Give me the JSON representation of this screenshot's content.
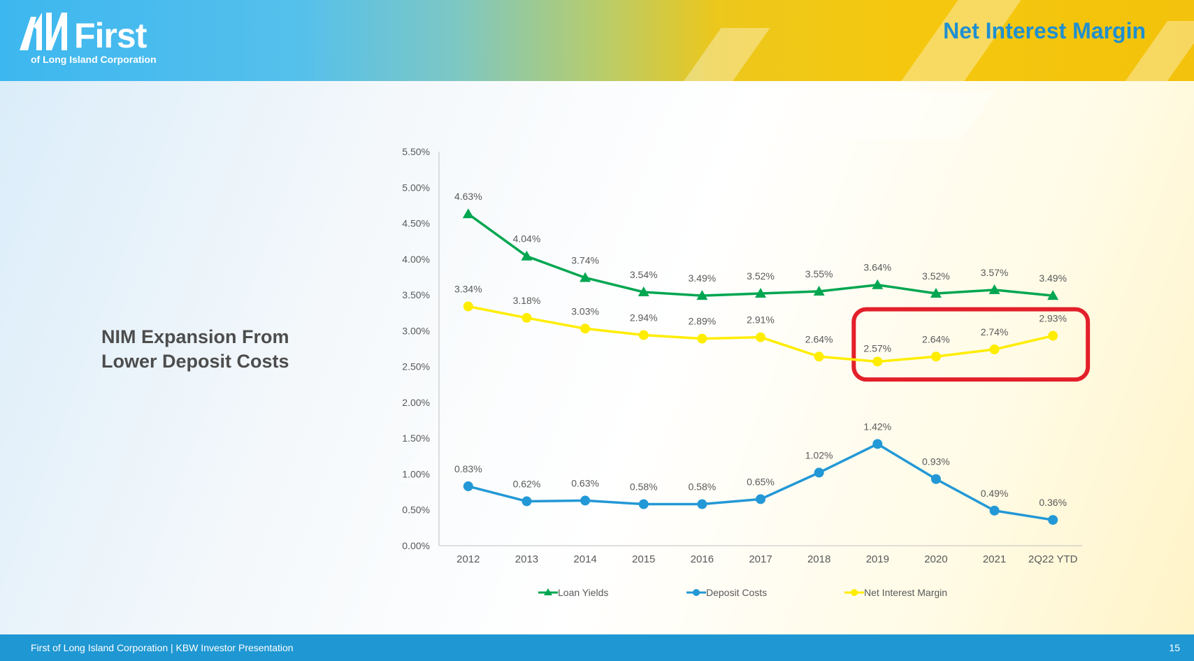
{
  "header": {
    "logo_text": "First",
    "logo_subtitle": "of Long Island Corporation",
    "title": "Net Interest Margin"
  },
  "side_heading": "NIM Expansion From Lower Deposit Costs",
  "footer": {
    "text": "First of Long Island Corporation | KBW Investor Presentation",
    "page_number": "15"
  },
  "colors": {
    "loan_yields": "#00a651",
    "deposit_costs": "#2398d6",
    "net_interest_margin": "#ffed00",
    "highlight_box": "#e3202a"
  },
  "chart_data": {
    "type": "line",
    "categories": [
      "2012",
      "2013",
      "2014",
      "2015",
      "2016",
      "2017",
      "2018",
      "2019",
      "2020",
      "2021",
      "2Q22 YTD"
    ],
    "y_ticks": [
      "0.00%",
      "0.50%",
      "1.00%",
      "1.50%",
      "2.00%",
      "2.50%",
      "3.00%",
      "3.50%",
      "4.00%",
      "4.50%",
      "5.00%",
      "5.50%"
    ],
    "ylim": [
      0,
      5.5
    ],
    "legend_position": "bottom",
    "grid": false,
    "series": [
      {
        "name": "Loan Yields",
        "marker": "triangle",
        "values": [
          4.63,
          4.04,
          3.74,
          3.54,
          3.49,
          3.52,
          3.55,
          3.64,
          3.52,
          3.57,
          3.49
        ],
        "labels": [
          "4.63%",
          "4.04%",
          "3.74%",
          "3.54%",
          "3.49%",
          "3.52%",
          "3.55%",
          "3.64%",
          "3.52%",
          "3.57%",
          "3.49%"
        ]
      },
      {
        "name": "Deposit Costs",
        "marker": "circle",
        "values": [
          0.83,
          0.62,
          0.63,
          0.58,
          0.58,
          0.65,
          1.02,
          1.42,
          0.93,
          0.49,
          0.36
        ],
        "labels": [
          "0.83%",
          "0.62%",
          "0.63%",
          "0.58%",
          "0.58%",
          "0.65%",
          "1.02%",
          "1.42%",
          "0.93%",
          "0.49%",
          "0.36%"
        ]
      },
      {
        "name": "Net Interest Margin",
        "marker": "circle",
        "values": [
          3.34,
          3.18,
          3.03,
          2.94,
          2.89,
          2.91,
          2.64,
          2.57,
          2.64,
          2.74,
          2.93
        ],
        "labels": [
          "3.34%",
          "3.18%",
          "3.03%",
          "2.94%",
          "2.89%",
          "2.91%",
          "2.64%",
          "2.57%",
          "2.64%",
          "2.74%",
          "2.93%"
        ]
      }
    ],
    "highlight": {
      "from_category": "2019",
      "to_category": "2Q22 YTD",
      "series": "Net Interest Margin"
    }
  }
}
